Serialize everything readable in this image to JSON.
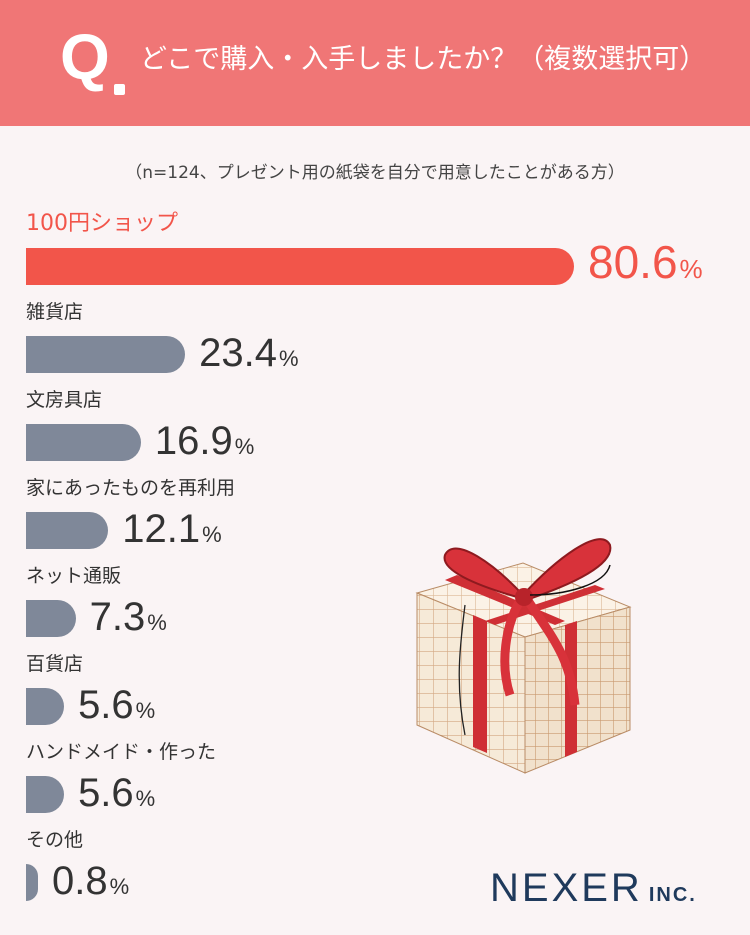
{
  "header": {
    "q_letter": "Q",
    "question": "どこで購入・入手しましたか？（複数選択可）"
  },
  "note": "（n=124、プレゼント用の紙袋を自分で用意したことがある方）",
  "chart_data": {
    "type": "bar",
    "orientation": "horizontal",
    "categories": [
      "100円ショップ",
      "雑貨店",
      "文房具店",
      "家にあったものを再利用",
      "ネット通販",
      "百貨店",
      "ハンドメイド・作った",
      "その他"
    ],
    "values": [
      80.6,
      23.4,
      16.9,
      12.1,
      7.3,
      5.6,
      5.6,
      0.8
    ],
    "value_labels": [
      "80.6",
      "23.4",
      "16.9",
      "12.1",
      "7.3",
      "5.6",
      "5.6",
      "0.8"
    ],
    "unit": "%",
    "highlight_index": 0,
    "colors": {
      "highlight": "#f2554a",
      "default": "#7f8899"
    }
  },
  "colors": {
    "header_bg": "#f07676",
    "page_bg": "#faf4f5",
    "logo": "#1f3a5c"
  },
  "illustration": "gift-box-with-red-ribbon",
  "logo": {
    "main": "NEXER",
    "suffix": "INC."
  }
}
